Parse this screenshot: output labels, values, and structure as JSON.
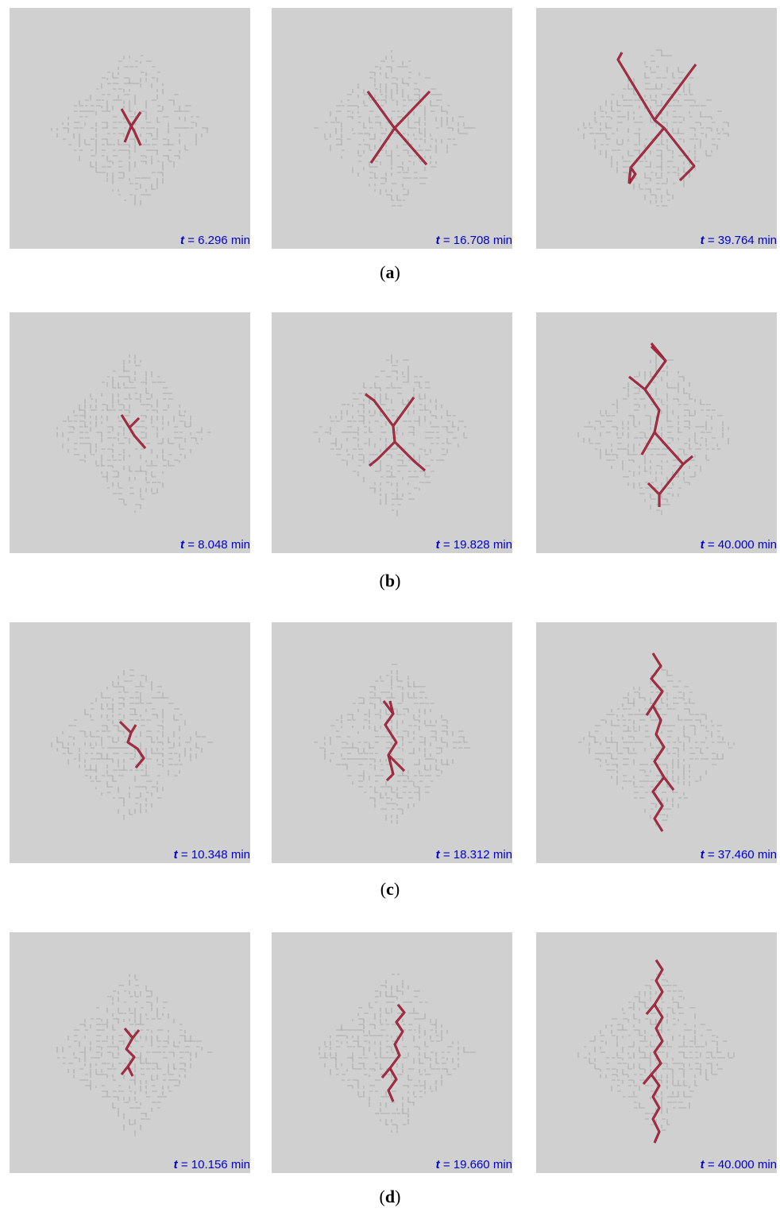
{
  "figure": {
    "rows": [
      {
        "caption": {
          "open": "(",
          "letter": "a",
          "close": ")"
        },
        "panels": [
          {
            "symbol": "t",
            "rest": "= 6.296 min"
          },
          {
            "symbol": "t",
            "rest": "= 16.708 min"
          },
          {
            "symbol": "t",
            "rest": "= 39.764 min"
          }
        ]
      },
      {
        "caption": {
          "open": "(",
          "letter": "b",
          "close": ")"
        },
        "panels": [
          {
            "symbol": "t",
            "rest": "= 8.048 min"
          },
          {
            "symbol": "t",
            "rest": "= 19.828 min"
          },
          {
            "symbol": "t",
            "rest": "= 40.000 min"
          }
        ]
      },
      {
        "caption": {
          "open": "(",
          "letter": "c",
          "close": ")"
        },
        "panels": [
          {
            "symbol": "t",
            "rest": "= 10.348 min"
          },
          {
            "symbol": "t",
            "rest": "= 18.312 min"
          },
          {
            "symbol": "t",
            "rest": "= 37.460 min"
          }
        ]
      },
      {
        "caption": {
          "open": "(",
          "letter": "d",
          "close": ")"
        },
        "panels": [
          {
            "symbol": "t",
            "rest": "= 10.156 min"
          },
          {
            "symbol": "t",
            "rest": "= 19.660 min"
          },
          {
            "symbol": "t",
            "rest": "= 40.000 min"
          }
        ]
      }
    ]
  }
}
